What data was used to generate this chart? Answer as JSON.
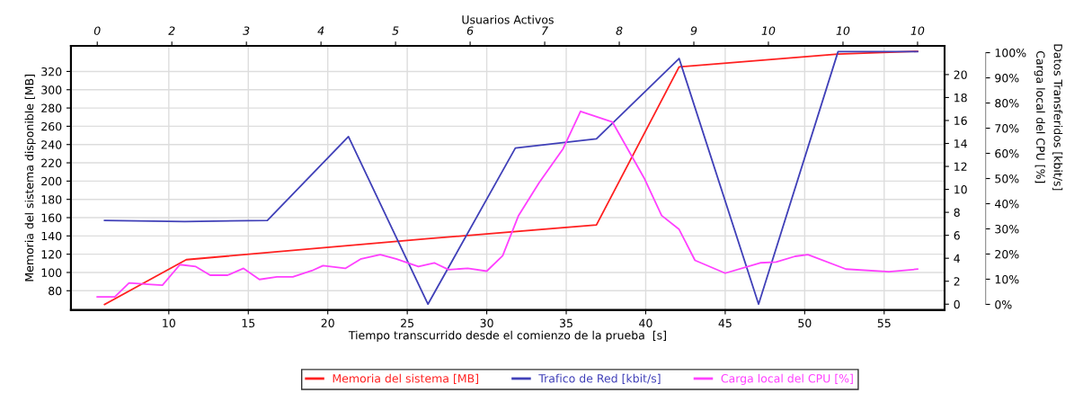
{
  "chart_data": {
    "type": "line",
    "xlabel": "Tiempo transcurrido desde el comienzo de la prueba  [s]",
    "ylabel": "Memoria del sistema disponible [MB]",
    "y2label": "Datos Transferidos [kbit/s]",
    "y3label": "Carga local del CPU [%]",
    "x2label": "Usuarios Activos",
    "xlim": [
      3.84,
      58.8
    ],
    "xticks": [
      10,
      15,
      20,
      25,
      30,
      35,
      40,
      45,
      50,
      55
    ],
    "annotations": [
      "0",
      "2",
      "3",
      "4",
      "5",
      "6",
      "7",
      "8",
      "9",
      "10",
      "10",
      "10"
    ],
    "ylim": [
      59,
      348
    ],
    "yticks": [
      80,
      100,
      120,
      140,
      160,
      180,
      200,
      220,
      240,
      260,
      280,
      300,
      320
    ],
    "y2lim": [
      -0.5,
      22.5
    ],
    "y2ticks": [
      0,
      2,
      4,
      6,
      8,
      10,
      12,
      14,
      16,
      18,
      20
    ],
    "y3lim": [
      -2.2,
      102.7
    ],
    "y3ticks": [
      {
        "value": 0,
        "label": "0%"
      },
      {
        "value": 10,
        "label": "10%"
      },
      {
        "value": 20,
        "label": "20%"
      },
      {
        "value": 30,
        "label": "30%"
      },
      {
        "value": 40,
        "label": "40%"
      },
      {
        "value": 50,
        "label": "50%"
      },
      {
        "value": 60,
        "label": "60%"
      },
      {
        "value": 70,
        "label": "70%"
      },
      {
        "value": 80,
        "label": "80%"
      },
      {
        "value": 90,
        "label": "90%"
      },
      {
        "value": 100,
        "label": "100%"
      }
    ],
    "grid": true,
    "legend": "bottom",
    "marker": "none",
    "line_style": "solid",
    "series": [
      {
        "name": "Memoria del sistema [MB]",
        "color": "#ff2020",
        "axis": "y",
        "x": [
          5.96,
          11.1,
          26.3,
          36.9,
          42.1,
          52.1,
          57.1
        ],
        "values": [
          65,
          114,
          137,
          152,
          325,
          339,
          342
        ]
      },
      {
        "name": "Trafico de Red [kbit/s]",
        "color": "#4040b8",
        "axis": "y2",
        "x": [
          5.96,
          11.0,
          16.2,
          21.3,
          26.3,
          31.8,
          36.9,
          42.1,
          47.1,
          52.1,
          57.1
        ],
        "values": [
          7.3,
          7.2,
          7.3,
          14.6,
          0,
          13.6,
          14.4,
          21.4,
          0,
          22.0,
          22.0
        ]
      },
      {
        "name": "Carga local del CPU [%]",
        "color": "#ff40ff",
        "axis": "y3",
        "x": [
          5.5,
          6.6,
          7.5,
          8.9,
          9.6,
          10.7,
          11.7,
          12.6,
          13.7,
          14.7,
          15.7,
          16.8,
          17.8,
          19.0,
          19.7,
          21.1,
          22.1,
          23.3,
          24.3,
          25.7,
          26.7,
          27.6,
          28.8,
          30.0,
          31.0,
          32.0,
          33.3,
          34.8,
          35.9,
          37.9,
          39.9,
          41.0,
          42.1,
          43.1,
          45.0,
          47.2,
          48.2,
          49.4,
          50.2,
          52.6,
          55.3,
          57.1
        ],
        "values": [
          3.0,
          3.0,
          8.5,
          7.9,
          7.6,
          15.8,
          15.0,
          11.6,
          11.6,
          14.3,
          9.9,
          10.9,
          10.9,
          13.4,
          15.4,
          14.3,
          18.1,
          19.8,
          18.1,
          15.0,
          16.5,
          13.8,
          14.3,
          13.2,
          19.3,
          35.3,
          48.4,
          61.8,
          76.7,
          72.5,
          50.2,
          35.3,
          29.8,
          17.5,
          12.4,
          16.5,
          16.8,
          19.1,
          19.8,
          14.0,
          13.0,
          14.0
        ]
      }
    ]
  }
}
